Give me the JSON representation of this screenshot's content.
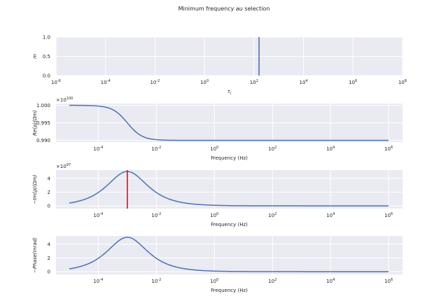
{
  "chart_data": {
    "title": "Minimum frequency $\\tau$ selection",
    "title_parts": [
      "Minimum frequency ",
      "au",
      " selection"
    ],
    "colors": {
      "background": "#eaeaf2",
      "grid": "#ffffff",
      "line": "#4c72b0",
      "marker": "#ff0000"
    },
    "panels": [
      {
        "id": "tau-panel",
        "type": "line",
        "xscale": "log",
        "xlim": [
          1e-06,
          100000000.0
        ],
        "ylim": [
          0,
          1
        ],
        "xticks_exp": [
          -6,
          -4,
          -2,
          0,
          2,
          4,
          6,
          8
        ],
        "yticks": [
          "0.0",
          "0.5",
          "1.0"
        ],
        "ytick_values": [
          0,
          0.5,
          1
        ],
        "xlabel": "τ_l",
        "xlabel_parts": [
          "τ",
          "l"
        ],
        "ylabel": "m",
        "offset": "",
        "vline_x": 160,
        "vline_color": "line"
      },
      {
        "id": "real-panel",
        "type": "line",
        "xscale": "log",
        "xlim": [
          3.5e-06,
          3000000.0
        ],
        "ylim": [
          0.9895,
          1.0005
        ],
        "xticks_exp": [
          -4,
          -2,
          0,
          2,
          4,
          6
        ],
        "yticks": [
          "0.990",
          "0.995",
          "1.000"
        ],
        "ytick_values": [
          0.99,
          0.995,
          1.0
        ],
        "xlabel": "Frequency (Hz)",
        "ylabel": "Re(ρ)(Ωm)",
        "offset_base": "×10",
        "offset_exp": "100",
        "curve": "real",
        "vline_x": null
      },
      {
        "id": "imag-panel",
        "type": "line",
        "xscale": "log",
        "xlim": [
          3.5e-06,
          3000000.0
        ],
        "ylim": [
          -0.4,
          5.2
        ],
        "xticks_exp": [
          -4,
          -2,
          0,
          2,
          4,
          6
        ],
        "yticks": [
          "0",
          "2",
          "4"
        ],
        "ytick_values": [
          0,
          2,
          4
        ],
        "xlabel": "Frequency (Hz)",
        "ylabel": "−Im(ρ)(Ωm)",
        "offset_base": "×10",
        "offset_exp": "97",
        "curve": "imag",
        "vline_x": 0.001,
        "vline_color": "marker"
      },
      {
        "id": "phase-panel",
        "type": "line",
        "xscale": "log",
        "xlim": [
          3.5e-06,
          3000000.0
        ],
        "ylim": [
          -0.4,
          5.2
        ],
        "xticks_exp": [
          -4,
          -2,
          0,
          2,
          4,
          6
        ],
        "yticks": [
          "0",
          "2",
          "4"
        ],
        "ytick_values": [
          0,
          2,
          4
        ],
        "xlabel": "Frequency (Hz)",
        "ylabel": "−Phase(mrad)",
        "offset": "",
        "curve": "phase",
        "vline_x": null
      }
    ],
    "series": {
      "x_range": [
        1e-05,
        1000000.0
      ],
      "real_high": 1.0,
      "real_low": 0.99,
      "peak_freq": 0.001,
      "peak_value": 5.0
    }
  }
}
